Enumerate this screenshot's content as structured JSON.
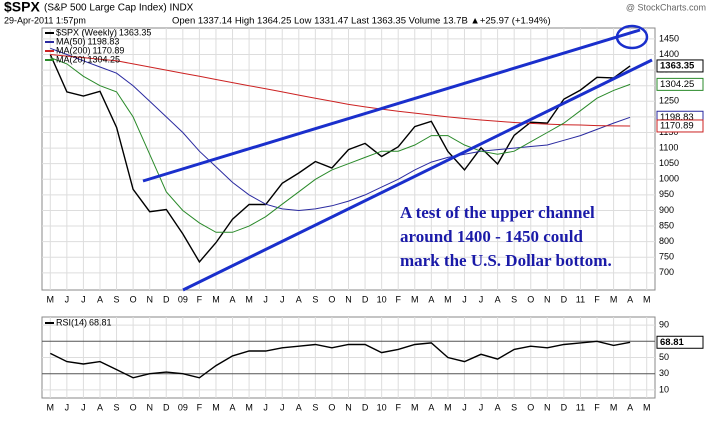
{
  "header": {
    "symbol": "$SPX",
    "name": "(S&P 500 Large Cap Index) INDX",
    "date": "29-Apr-2011 1:57pm",
    "quote": "Open 1337.14  High 1364.25  Low 1331.47  Last 1363.35  Volume 13.7B  ▲+25.97 (+1.94%)",
    "credit": "@ StockCharts.com"
  },
  "annotation": [
    "A test of the upper channel",
    "around 1400 - 1450 could",
    "mark the U.S. Dollar bottom."
  ],
  "chart_data": [
    {
      "type": "line",
      "title": "$SPX (Weekly)",
      "categories": [
        "M",
        "J",
        "J",
        "A",
        "S",
        "O",
        "N",
        "D",
        "09",
        "F",
        "M",
        "A",
        "M",
        "J",
        "J",
        "A",
        "S",
        "O",
        "N",
        "D",
        "10",
        "F",
        "M",
        "A",
        "M",
        "J",
        "J",
        "A",
        "S",
        "O",
        "N",
        "D",
        "11",
        "F",
        "M",
        "A",
        "M"
      ],
      "series": [
        {
          "name": "$SPX (Weekly)",
          "color": "#000000",
          "values": [
            1400,
            1280,
            1267,
            1282,
            1166,
            968,
            896,
            903,
            825,
            735,
            797,
            872,
            919,
            919,
            987,
            1020,
            1057,
            1036,
            1095,
            1115,
            1073,
            1104,
            1169,
            1186,
            1089,
            1030,
            1101,
            1049,
            1141,
            1183,
            1180,
            1257,
            1286,
            1327,
            1325,
            1363.35,
            null
          ]
        },
        {
          "name": "MA(50)",
          "color": "#2a2aa0",
          "values": [
            1420,
            1400,
            1380,
            1360,
            1340,
            1300,
            1250,
            1200,
            1150,
            1090,
            1040,
            990,
            950,
            920,
            905,
            900,
            905,
            915,
            930,
            950,
            975,
            1000,
            1030,
            1055,
            1070,
            1080,
            1090,
            1095,
            1100,
            1105,
            1110,
            1125,
            1140,
            1160,
            1180,
            1198.83,
            null
          ]
        },
        {
          "name": "MA(200)",
          "color": "#cc2222",
          "values": [
            1400,
            1395,
            1390,
            1385,
            1380,
            1370,
            1360,
            1350,
            1340,
            1330,
            1320,
            1310,
            1300,
            1290,
            1280,
            1270,
            1260,
            1250,
            1240,
            1232,
            1225,
            1218,
            1212,
            1206,
            1200,
            1195,
            1190,
            1186,
            1182,
            1179,
            1177,
            1175,
            1174,
            1172,
            1171,
            1170.89,
            null
          ]
        },
        {
          "name": "MA(20)",
          "color": "#2a8a2a",
          "values": [
            1390,
            1370,
            1330,
            1300,
            1280,
            1200,
            1080,
            960,
            900,
            860,
            830,
            830,
            850,
            880,
            920,
            960,
            1000,
            1030,
            1050,
            1070,
            1090,
            1090,
            1110,
            1140,
            1140,
            1110,
            1090,
            1080,
            1090,
            1120,
            1150,
            1180,
            1220,
            1260,
            1285,
            1304.25,
            null
          ]
        }
      ],
      "ylim": [
        645,
        1485
      ],
      "yticks": [
        700,
        750,
        800,
        850,
        900,
        950,
        1000,
        1050,
        1100,
        1150,
        1200,
        1250,
        1300,
        1350,
        1400,
        1450
      ],
      "grid": true
    },
    {
      "type": "line",
      "title": "RSI(14)",
      "categories": [
        "M",
        "J",
        "J",
        "A",
        "S",
        "O",
        "N",
        "D",
        "09",
        "F",
        "M",
        "A",
        "M",
        "J",
        "J",
        "A",
        "S",
        "O",
        "N",
        "D",
        "10",
        "F",
        "M",
        "A",
        "M",
        "J",
        "J",
        "A",
        "S",
        "O",
        "N",
        "D",
        "11",
        "F",
        "M",
        "A",
        "M"
      ],
      "series": [
        {
          "name": "RSI(14)",
          "color": "#000000",
          "values": [
            55,
            45,
            42,
            45,
            35,
            25,
            30,
            32,
            30,
            25,
            40,
            52,
            58,
            58,
            62,
            64,
            66,
            62,
            66,
            66,
            56,
            60,
            66,
            68,
            50,
            45,
            54,
            48,
            60,
            64,
            62,
            66,
            68,
            70,
            65,
            68.81,
            null
          ]
        }
      ],
      "ylim": [
        0,
        100
      ],
      "yticks": [
        10,
        30,
        50,
        70,
        90
      ],
      "grid": true
    }
  ]
}
